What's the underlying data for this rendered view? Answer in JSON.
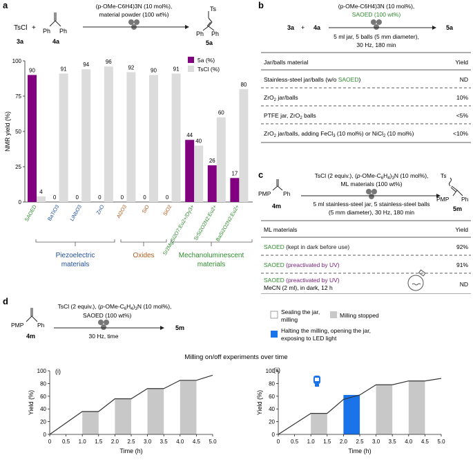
{
  "panel_a": {
    "letter": "a",
    "scheme": {
      "reagent1": "TsCl",
      "plus": "+",
      "ph_left": "Ph",
      "ph_right": "Ph",
      "cond1": "(p-OMe-C6H4)3N (10 mol%),",
      "cond2": "material powder (100 wt%)",
      "ts": "Ts",
      "label_3a": "3a",
      "label_4a": "4a",
      "label_5a": "5a"
    },
    "groups": [
      "Piezoelectric materials",
      "Oxides",
      "Mechanoluminescent materials"
    ],
    "group_colors": [
      "#1f4e9c",
      "#b35c1e",
      "#2e8b2e"
    ]
  },
  "panel_b": {
    "letter": "b",
    "scheme_left": "3a",
    "scheme_plus": "+",
    "scheme_mid": "4a",
    "scheme_right": "5a",
    "cond1": "(p-OMe-C6H4)3N (10 mol%),",
    "cond2": "SAOED (100 wt%)",
    "cond3": "5 ml jar, 5 balls (5 mm diameter),",
    "cond4": "30 Hz, 180 min",
    "header_left": "Jar/balls material",
    "header_right": "Yield",
    "rows": [
      {
        "left": "Stainless-steel jar/balls (w/o SAOED)",
        "right": "ND"
      },
      {
        "left": "ZrO2 jar/balls",
        "right": "10%"
      },
      {
        "left": "PTFE jar, ZrO2 balls",
        "right": "<5%"
      },
      {
        "left": "ZrO2 jar/balls, adding FeCl3 (10 mol%) or NiCl2 (10 mol%)",
        "right": "<10%"
      }
    ]
  },
  "panel_c": {
    "letter": "c",
    "pmp": "PMP",
    "ph": "Ph",
    "ts": "Ts",
    "label_4m": "4m",
    "label_5m": "5m",
    "cond1": "TsCl (2 equiv.), (p-OMe-C6H4)3N (10 mol%),",
    "cond2": "ML materials (100 wt%)",
    "cond3": "5 ml stainless-steel jar, 5 stainless-steel balls",
    "cond4": "(5 mm diameter), 30 Hz, 180 min",
    "header_left": "ML materials",
    "header_right": "Yield",
    "rows": [
      {
        "left": "SAOED (kept in dark before use)",
        "right": "92%"
      },
      {
        "left": "SAOED (preactivated by UV)",
        "right": "91%"
      },
      {
        "left": "SAOED (preactivated by UV)",
        "left2": "MeCN (2 ml), in dark, 12 h",
        "right": "ND"
      }
    ]
  },
  "panel_d": {
    "letter": "d",
    "pmp": "PMP",
    "ph": "Ph",
    "label_4m": "4m",
    "label_5m": "5m",
    "cond1": "TsCl (2 equiv.), (p-OMe-C6H4)3N (10 mol%),",
    "cond2": "SAOED (100 wt%)",
    "cond3": "30 Hz, time",
    "legend": [
      "Sealing the jar, milling",
      "Milling stopped",
      "Halting the milling, opening the jar, exposing to LED light"
    ],
    "title": "Milling on/off experiments over time",
    "sub_i": "(i)",
    "sub_ii": "(ii)",
    "colors": {
      "stopped": "#c8c8c8",
      "led": "#1a73e8",
      "line": "#333333"
    }
  },
  "chart_data": [
    {
      "type": "bar",
      "title": "",
      "ylabel": "NMR yield (%)",
      "ylim": [
        0,
        100
      ],
      "yticks": [
        0,
        25,
        50,
        75,
        100
      ],
      "categories": [
        "SAOED",
        "BaTiO3",
        "LiNbO3",
        "ZnO",
        "Al2O3",
        "SiO",
        "SiO2",
        "Sr2MgSi2O7:Eu2+/Dy3+",
        "SrSi2O2N2:Eu2+",
        "BaSi2O2N2:Eu2+"
      ],
      "category_colors": [
        "#2e8b2e",
        "#1f4e9c",
        "#1f4e9c",
        "#1f4e9c",
        "#b35c1e",
        "#b35c1e",
        "#b35c1e",
        "#2e8b2e",
        "#2e8b2e",
        "#2e8b2e"
      ],
      "series": [
        {
          "name": "5a (%)",
          "color": "#800080",
          "values": [
            90,
            0,
            0,
            0,
            0,
            0,
            0,
            44,
            26,
            17
          ]
        },
        {
          "name": "TsCl (%)",
          "color": "#dcdcdc",
          "values": [
            4,
            91,
            94,
            96,
            92,
            90,
            91,
            40,
            60,
            80
          ]
        }
      ],
      "legend_position": "top-right"
    },
    {
      "type": "line",
      "title": "(i)",
      "xlabel": "Time (h)",
      "ylabel": "Yield (%)",
      "xlim": [
        0,
        5
      ],
      "ylim": [
        0,
        100
      ],
      "xticks": [
        0,
        0.5,
        1.0,
        1.5,
        2.0,
        2.5,
        3.0,
        3.5,
        4.0,
        4.5,
        5.0
      ],
      "yticks": [
        0,
        20,
        40,
        60,
        80,
        100
      ],
      "x": [
        0,
        1.0,
        1.5,
        2.0,
        2.5,
        3.0,
        3.5,
        4.0,
        4.5,
        5.0
      ],
      "y": [
        0,
        36,
        36,
        56,
        56,
        72,
        72,
        85,
        85,
        93
      ],
      "shaded": [
        {
          "from": 1.0,
          "to": 1.5,
          "kind": "stopped",
          "y": 36
        },
        {
          "from": 2.0,
          "to": 2.5,
          "kind": "stopped",
          "y": 56
        },
        {
          "from": 3.0,
          "to": 3.5,
          "kind": "stopped",
          "y": 72
        },
        {
          "from": 4.0,
          "to": 4.5,
          "kind": "stopped",
          "y": 85
        }
      ]
    },
    {
      "type": "line",
      "title": "(ii)",
      "xlabel": "Time (h)",
      "ylabel": "Yield (%)",
      "xlim": [
        0,
        5
      ],
      "ylim": [
        0,
        100
      ],
      "xticks": [
        0,
        0.5,
        1.0,
        1.5,
        2.0,
        2.5,
        3.0,
        3.5,
        4.0,
        4.5,
        5.0
      ],
      "yticks": [
        0,
        20,
        40,
        60,
        80,
        100
      ],
      "x": [
        0,
        1.0,
        1.5,
        2.0,
        2.5,
        3.0,
        3.5,
        4.0,
        4.5,
        5.0
      ],
      "y": [
        0,
        33,
        33,
        55,
        62,
        78,
        78,
        84,
        84,
        88
      ],
      "shaded": [
        {
          "from": 1.0,
          "to": 1.5,
          "kind": "stopped",
          "y": 33
        },
        {
          "from": 2.0,
          "to": 2.5,
          "kind": "led",
          "y": 62
        },
        {
          "from": 3.0,
          "to": 3.5,
          "kind": "stopped",
          "y": 78
        },
        {
          "from": 4.0,
          "to": 4.5,
          "kind": "stopped",
          "y": 84
        }
      ]
    }
  ]
}
